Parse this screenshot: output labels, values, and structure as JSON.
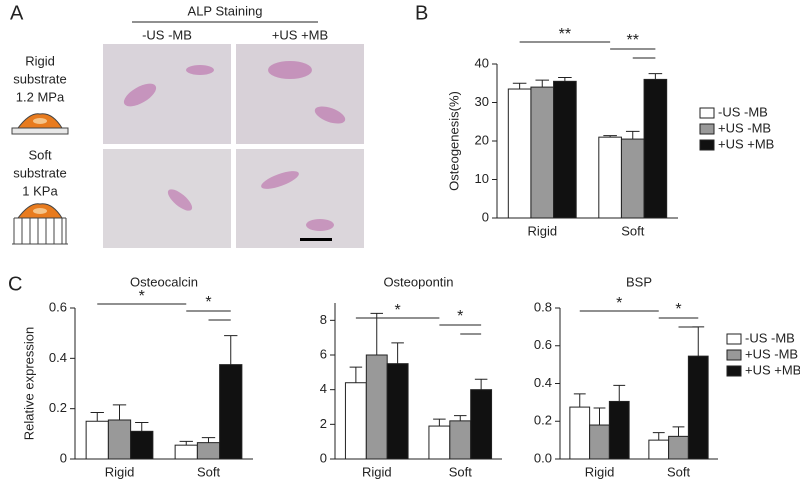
{
  "panel_a": {
    "panel_label": "A",
    "title": "ALP Staining",
    "columns": [
      "-US -MB",
      "+US +MB"
    ],
    "rows": [
      [
        "Rigid",
        "substrate",
        "1.2 MPa"
      ],
      [
        "Soft",
        "substrate",
        "1 KPa"
      ]
    ]
  },
  "chart_data": [
    {
      "type": "bar",
      "panel_label": "B",
      "ylabel": "Osteogenesis(%)",
      "categories": [
        "Rigid",
        "Soft"
      ],
      "series": [
        {
          "name": "-US -MB",
          "color": "#ffffff",
          "values": [
            33.5,
            21
          ],
          "errors": [
            1.5,
            0.4
          ]
        },
        {
          "name": "+US -MB",
          "color": "#999999",
          "values": [
            34,
            20.5
          ],
          "errors": [
            1.8,
            2
          ]
        },
        {
          "name": "+US +MB",
          "color": "#111111",
          "values": [
            35.5,
            36
          ],
          "errors": [
            1,
            1.5
          ]
        }
      ],
      "ylim": [
        0,
        40
      ],
      "yticks": [
        0,
        10,
        20,
        30,
        40
      ],
      "legend": "right",
      "annotations": [
        "**",
        "**"
      ]
    },
    {
      "type": "bar",
      "panel_label": "C",
      "title": "Osteocalcin",
      "ylabel": "Relative expression",
      "categories": [
        "Rigid",
        "Soft"
      ],
      "series": [
        {
          "color": "#ffffff",
          "values": [
            0.15,
            0.055
          ],
          "errors": [
            0.035,
            0.015
          ]
        },
        {
          "color": "#999999",
          "values": [
            0.155,
            0.065
          ],
          "errors": [
            0.06,
            0.02
          ]
        },
        {
          "color": "#111111",
          "values": [
            0.11,
            0.375
          ],
          "errors": [
            0.035,
            0.115
          ]
        }
      ],
      "ylim": [
        0,
        0.6
      ],
      "yticks": [
        0,
        0.2,
        0.4,
        0.6
      ],
      "annotations": [
        "*",
        "*"
      ]
    },
    {
      "type": "bar",
      "title": "Osteopontin",
      "categories": [
        "Rigid",
        "Soft"
      ],
      "series": [
        {
          "color": "#ffffff",
          "values": [
            4.4,
            1.9
          ],
          "errors": [
            0.9,
            0.4
          ]
        },
        {
          "color": "#999999",
          "values": [
            6.0,
            2.2
          ],
          "errors": [
            2.4,
            0.3
          ]
        },
        {
          "color": "#111111",
          "values": [
            5.5,
            4.0
          ],
          "errors": [
            1.2,
            0.6
          ]
        }
      ],
      "ylim": [
        0,
        9
      ],
      "yticks": [
        0,
        2,
        4,
        6,
        8
      ],
      "annotations": [
        "*",
        "*"
      ]
    },
    {
      "type": "bar",
      "title": "BSP",
      "categories": [
        "Rigid",
        "Soft"
      ],
      "series": [
        {
          "name": "-US -MB",
          "color": "#ffffff",
          "values": [
            0.275,
            0.1
          ],
          "errors": [
            0.07,
            0.04
          ]
        },
        {
          "name": "+US -MB",
          "color": "#999999",
          "values": [
            0.18,
            0.12
          ],
          "errors": [
            0.09,
            0.05
          ]
        },
        {
          "name": "+US +MB",
          "color": "#111111",
          "values": [
            0.305,
            0.545
          ],
          "errors": [
            0.085,
            0.155
          ]
        }
      ],
      "ylim": [
        0,
        0.8
      ],
      "yticks": [
        {
          "value": 0,
          "label": "0.0"
        },
        0.2,
        0.4,
        0.6,
        0.8
      ],
      "legend": "right",
      "annotations": [
        "*",
        "*"
      ]
    }
  ]
}
